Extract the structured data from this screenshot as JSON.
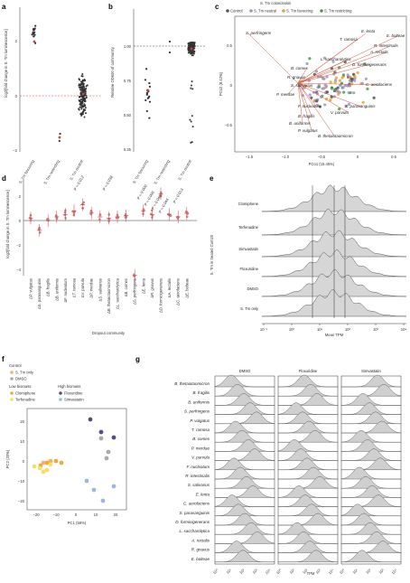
{
  "panels": {
    "a": {
      "label": "a",
      "ylabel": "log2[fold change in S. Tm luminescence]",
      "yticks": [
        "2",
        "0",
        "−2"
      ],
      "categories": [
        "S. Tm favouring",
        "S. Tm restricting",
        "S. Tm neutral"
      ]
    },
    "b": {
      "label": "b",
      "ylabel": "Relative OD600 of community",
      "yticks": [
        "1.00",
        "0.75",
        "0.50",
        "0.25"
      ],
      "categories": [
        "S. Tm favouring",
        "S. Tm restricting",
        "S. Tm neutral"
      ]
    },
    "c": {
      "label": "c",
      "legend_title": "S. Tm colonization",
      "legend": [
        {
          "name": "Control",
          "color": "#555555"
        },
        {
          "name": "S. Tm neutral",
          "color": "#9b95c9"
        },
        {
          "name": "S. Tm favouring",
          "color": "#e8a13a"
        },
        {
          "name": "S. Tm restricting",
          "color": "#4e9a4a"
        }
      ],
      "xlabel": "PCo1 (16.45%)",
      "ylabel": "PCo2 (8.42%)",
      "xticks": [
        "−1.5",
        "−1.0",
        "−0.5",
        "0",
        "0.5"
      ],
      "yticks": [
        "0.5",
        "0",
        "−0.5"
      ],
      "species": [
        "S. perfringens",
        "E. lenta",
        "E. bolteae",
        "T. ramosa",
        "R. intestinalis",
        "A. rectalis",
        "L. saccharolytica",
        "D. formicigenerans",
        "B. comes",
        "R. gnavus",
        "S. salivarius",
        "C. aerofaciens",
        "P. merdae",
        "S. parasanguinis",
        "F. nucleatum",
        "V. parvula",
        "B. fragilis",
        "B. uniformis",
        "P. vulgatus",
        "B. thetaiotaomicron"
      ]
    },
    "d": {
      "label": "d",
      "ylabel": "log2[fold change in S. Tm luminescence]",
      "xlabel": "Dropout community",
      "yticks": [
        "2",
        "0",
        "−2",
        "−4"
      ],
      "pvalues": [
        "P = 0.012",
        "P = 0.038",
        "P = 0.000",
        "P = 0.000",
        "P = 0.046",
        "P = 0.044",
        "P = 0.013"
      ],
      "categories": [
        "ΔP. vulgatus",
        "ΔS. parasanguinis",
        "ΔB. fragilis",
        "ΔB. uniformis",
        "ΔF. nucleatum",
        "ΔT. ramosa",
        "ΔV. parvula",
        "ΔP. merdae",
        "ΔS. salivarius",
        "ΔB. thetaiotaomicron",
        "ΔL. saccharolytica",
        "ΔB. comes",
        "ΔS. perfringens",
        "ΔE. lenta",
        "ΔR. gnavus",
        "ΔD. formicigenerans",
        "ΔA. rectalis",
        "ΔC. aerofaciens",
        "ΔE. bolteae"
      ]
    },
    "e": {
      "label": "e",
      "ylabel": "S. Tm in treated Com20",
      "xlabel": "Mean TPM",
      "rows": [
        "Clomiphene",
        "Terfenadine",
        "Simvastatin",
        "Floxuridine",
        "DMSO",
        "S. Tm only"
      ],
      "xticks": [
        "10⁻¹",
        "10⁰",
        "10¹",
        "10²",
        "10³",
        "10⁴"
      ]
    },
    "f": {
      "label": "f",
      "xlabel": "PC1 (59%)",
      "ylabel": "PC2 (20%)",
      "xticks": [
        "−20",
        "−10",
        "0",
        "10",
        "20"
      ],
      "yticks": [
        "20",
        "10",
        "0",
        "−10",
        "−20"
      ],
      "legend_control_title": "Control",
      "legend_low_title": "Low biomass",
      "legend_high_title": "High biomass",
      "legend": [
        {
          "name": "S. Tm only",
          "color": "#f2b36b"
        },
        {
          "name": "DMSO",
          "color": "#aaaaaa"
        },
        {
          "name": "Clomiphene",
          "color": "#f0a844"
        },
        {
          "name": "Terfenadine",
          "color": "#f3e06a"
        },
        {
          "name": "Floxuridine",
          "color": "#5a4a8a"
        },
        {
          "name": "Simvastatin",
          "color": "#9ab8e0"
        }
      ]
    },
    "g": {
      "label": "g",
      "columns": [
        "DMSO",
        "Floxuridine",
        "Simvastatin"
      ],
      "xlabel": "TPM",
      "xticks": [
        "10⁰",
        "10¹",
        "10²",
        "10³",
        "10⁴"
      ],
      "species": [
        "B. thetaiotaomicron",
        "B. fragilis",
        "B. uniformis",
        "S. perfringens",
        "P. vulgatus",
        "T. ramosa",
        "B. comes",
        "P. merdae",
        "V. parvula",
        "F. nucleatum",
        "R. intestinalis",
        "S. salivarius",
        "E. lenta",
        "C. aerofaciens",
        "S. parasanguinis",
        "D. formicigenerans",
        "L. saccharolytica",
        "A. rectalis",
        "R. gnavus",
        "E. bolteae"
      ]
    }
  }
}
